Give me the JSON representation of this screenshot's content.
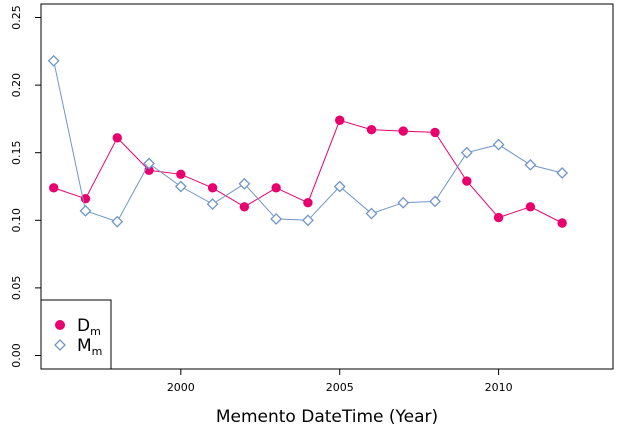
{
  "chart_data": {
    "type": "line",
    "xlabel": "Memento DateTime (Year)",
    "ylabel": "",
    "xlim": [
      1995.6,
      2013.6
    ],
    "ylim": [
      -0.01,
      0.26
    ],
    "x_ticks": [
      2000,
      2005,
      2010
    ],
    "y_ticks": [
      0.0,
      0.05,
      0.1,
      0.15,
      0.2,
      0.25
    ],
    "x_tick_labels": [
      "2000",
      "2005",
      "2010"
    ],
    "y_tick_labels": [
      "0.00",
      "0.05",
      "0.10",
      "0.15",
      "0.20",
      "0.25"
    ],
    "grid": false,
    "legend_position": "bottom-left",
    "x": [
      1996,
      1997,
      1998,
      1999,
      2000,
      2001,
      2002,
      2003,
      2004,
      2005,
      2006,
      2007,
      2008,
      2009,
      2010,
      2011,
      2012
    ],
    "series": [
      {
        "name": "D",
        "subscript": "m",
        "color": "#e8006e",
        "marker": "filled-circle",
        "values": [
          0.124,
          0.116,
          0.161,
          0.137,
          0.134,
          0.124,
          0.11,
          0.124,
          0.113,
          0.174,
          0.167,
          0.166,
          0.165,
          0.129,
          0.102,
          0.11,
          0.098
        ]
      },
      {
        "name": "M",
        "subscript": "m",
        "color": "#6f96c8",
        "marker": "open-diamond",
        "values": [
          0.218,
          0.107,
          0.099,
          0.142,
          0.125,
          0.112,
          0.127,
          0.101,
          0.1,
          0.125,
          0.105,
          0.113,
          0.114,
          0.15,
          0.156,
          0.141,
          0.135
        ]
      }
    ]
  }
}
